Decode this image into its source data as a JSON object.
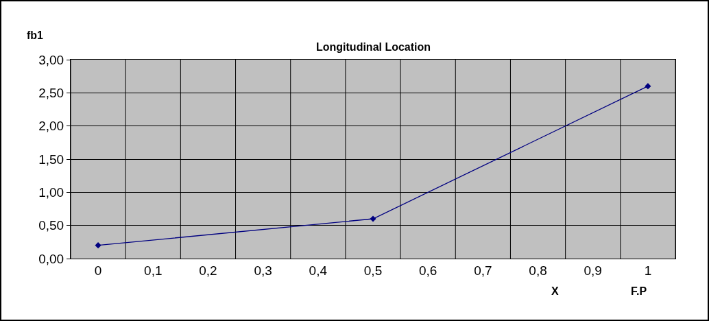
{
  "chart_data": {
    "type": "line",
    "title": "Longitudinal Location",
    "xlabel": "X",
    "ylabel": "fb1",
    "annotations": [
      "F.P"
    ],
    "x": [
      0,
      0.5,
      1
    ],
    "series": [
      {
        "color": "#000080",
        "values": [
          0.2,
          0.6,
          2.6
        ]
      }
    ],
    "xlim": [
      -0.05,
      1.05
    ],
    "xticks": [
      {
        "value": -0.05,
        "label": null
      },
      0,
      {
        "value": 0.05,
        "label": null
      },
      {
        "value": 0.1,
        "label": "0,1"
      },
      {
        "value": 0.15,
        "label": null
      },
      {
        "value": 0.2,
        "label": "0,2"
      },
      {
        "value": 0.25,
        "label": null
      },
      {
        "value": 0.3,
        "label": "0,3"
      },
      {
        "value": 0.35,
        "label": null
      },
      {
        "value": 0.4,
        "label": "0,4"
      },
      {
        "value": 0.45,
        "label": null
      },
      {
        "value": 0.5,
        "label": "0,5"
      },
      {
        "value": 0.55,
        "label": null
      },
      {
        "value": 0.6,
        "label": "0,6"
      },
      {
        "value": 0.65,
        "label": null
      },
      {
        "value": 0.7,
        "label": "0,7"
      },
      {
        "value": 0.75,
        "label": null
      },
      {
        "value": 0.8,
        "label": "0,8"
      },
      {
        "value": 0.85,
        "label": null
      },
      {
        "value": 0.9,
        "label": "0,9"
      },
      {
        "value": 0.95,
        "label": null
      },
      1,
      {
        "value": 1.05,
        "label": null
      }
    ],
    "ylim": [
      0,
      3
    ],
    "yticks": [
      {
        "value": 0,
        "label": "0,00"
      },
      {
        "value": 0.5,
        "label": "0,50"
      },
      {
        "value": 1,
        "label": "1,00"
      },
      {
        "value": 1.5,
        "label": "1,50"
      },
      {
        "value": 2,
        "label": "2,00"
      },
      {
        "value": 2.5,
        "label": "2,50"
      },
      {
        "value": 3,
        "label": "3,00"
      }
    ],
    "grid": true,
    "marker": "diamond",
    "line_style": "solid"
  }
}
